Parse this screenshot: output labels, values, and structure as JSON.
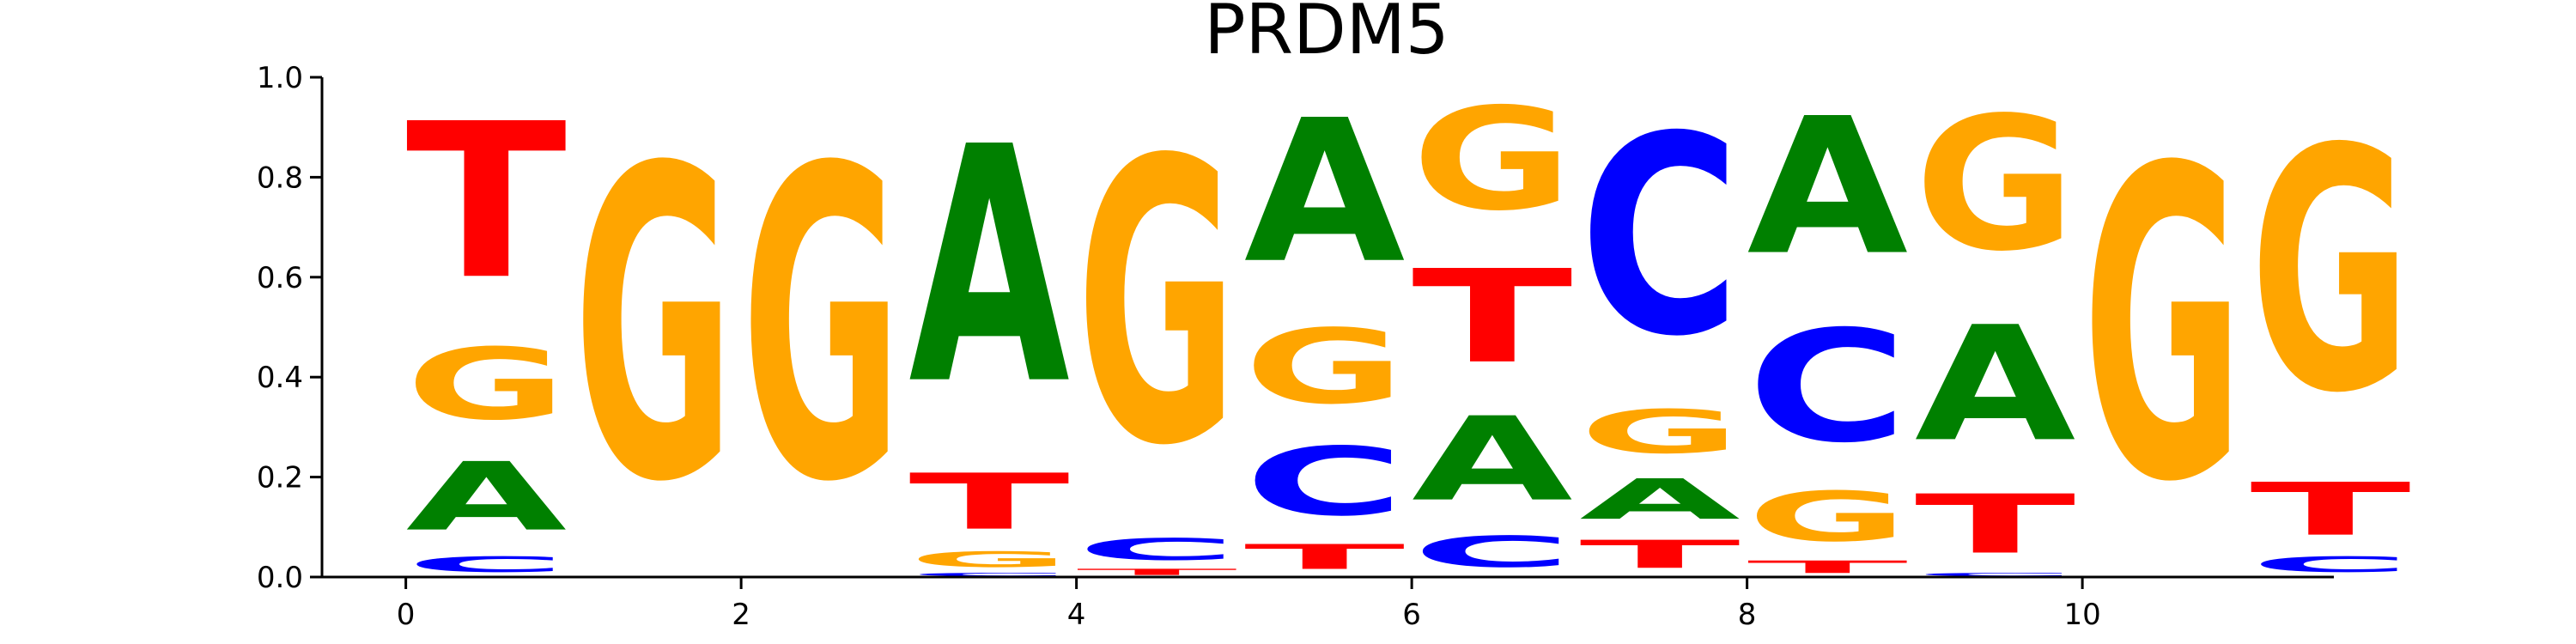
{
  "chart_data": {
    "type": "sequence-logo",
    "title": "PRDM5",
    "ylim": [
      0,
      1.0
    ],
    "xlim": [
      -0.5,
      11.5
    ],
    "yticks": [
      "0.0",
      "0.2",
      "0.4",
      "0.6",
      "0.8",
      "1.0"
    ],
    "xticks": [
      "0",
      "2",
      "4",
      "6",
      "8",
      "10"
    ],
    "colors": {
      "A": "#008000",
      "C": "#0000ff",
      "G": "#ffa500",
      "T": "#ff0000"
    },
    "positions": [
      {
        "pos": 0,
        "stack": [
          [
            "C",
            0.05
          ],
          [
            "A",
            0.22
          ],
          [
            "G",
            0.23
          ],
          [
            "T",
            0.5
          ]
        ]
      },
      {
        "pos": 1,
        "stack": [
          [
            "G",
            1.0
          ]
        ]
      },
      {
        "pos": 2,
        "stack": [
          [
            "G",
            1.0
          ]
        ]
      },
      {
        "pos": 3,
        "stack": [
          [
            "C",
            0.01
          ],
          [
            "G",
            0.05
          ],
          [
            "T",
            0.18
          ],
          [
            "A",
            0.76
          ]
        ]
      },
      {
        "pos": 4,
        "stack": [
          [
            "T",
            0.02
          ],
          [
            "C",
            0.07
          ],
          [
            "G",
            0.91
          ]
        ]
      },
      {
        "pos": 5,
        "stack": [
          [
            "T",
            0.08
          ],
          [
            "C",
            0.22
          ],
          [
            "G",
            0.24
          ],
          [
            "A",
            0.46
          ]
        ]
      },
      {
        "pos": 6,
        "stack": [
          [
            "C",
            0.1
          ],
          [
            "A",
            0.27
          ],
          [
            "T",
            0.3
          ],
          [
            "G",
            0.33
          ]
        ]
      },
      {
        "pos": 7,
        "stack": [
          [
            "T",
            0.09
          ],
          [
            "A",
            0.13
          ],
          [
            "G",
            0.14
          ],
          [
            "C",
            0.64
          ]
        ]
      },
      {
        "pos": 8,
        "stack": [
          [
            "T",
            0.04
          ],
          [
            "G",
            0.16
          ],
          [
            "C",
            0.36
          ],
          [
            "A",
            0.44
          ]
        ]
      },
      {
        "pos": 9,
        "stack": [
          [
            "C",
            0.01
          ],
          [
            "T",
            0.19
          ],
          [
            "A",
            0.37
          ],
          [
            "G",
            0.43
          ]
        ]
      },
      {
        "pos": 10,
        "stack": [
          [
            "G",
            1.0
          ]
        ]
      },
      {
        "pos": 11,
        "stack": [
          [
            "C",
            0.05
          ],
          [
            "T",
            0.17
          ],
          [
            "G",
            0.78
          ]
        ]
      }
    ]
  }
}
